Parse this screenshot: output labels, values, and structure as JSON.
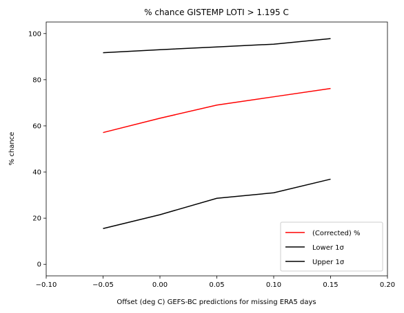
{
  "chart_data": {
    "type": "line",
    "title": "% chance GISTEMP LOTI > 1.195 C",
    "xlabel": "Offset (deg C) GEFS-BC predictions for missing ERA5 days",
    "ylabel": "% chance",
    "xlim": [
      -0.1,
      0.2
    ],
    "ylim": [
      -5,
      105
    ],
    "xticks": [
      -0.1,
      -0.05,
      0.0,
      0.05,
      0.1,
      0.15,
      0.2
    ],
    "xtick_labels": [
      "−0.10",
      "−0.05",
      "0.00",
      "0.05",
      "0.10",
      "0.15",
      "0.20"
    ],
    "yticks": [
      0,
      20,
      40,
      60,
      80,
      100
    ],
    "ytick_labels": [
      "0",
      "20",
      "40",
      "60",
      "80",
      "100"
    ],
    "grid": false,
    "legend_position": "bottom-right",
    "x": [
      -0.05,
      0.0,
      0.05,
      0.1,
      0.15
    ],
    "series": [
      {
        "name": "(Corrected) %",
        "color": "#ff0000",
        "values": [
          57.1,
          63.3,
          69.0,
          72.6,
          76.2
        ]
      },
      {
        "name": "Lower 1σ",
        "color": "#000000",
        "values": [
          15.5,
          21.5,
          28.6,
          31.0,
          36.9
        ]
      },
      {
        "name": "Upper 1σ",
        "color": "#000000",
        "values": [
          91.7,
          93.0,
          94.2,
          95.4,
          97.8
        ]
      }
    ]
  }
}
